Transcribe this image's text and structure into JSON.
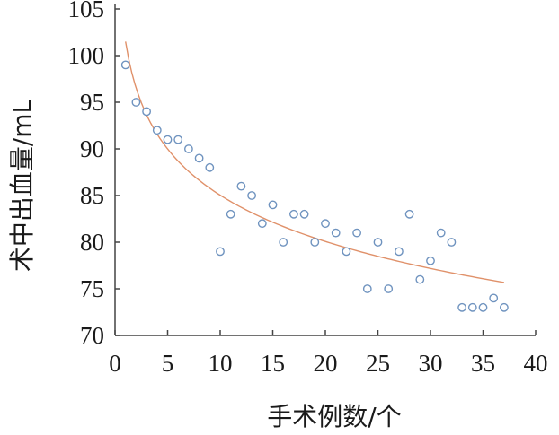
{
  "chart_data": {
    "type": "scatter",
    "xlabel": "手术例数/个",
    "ylabel": "术中出血量/mL",
    "xlim": [
      0,
      40
    ],
    "ylim": [
      70,
      105
    ],
    "xticks": [
      0,
      5,
      10,
      15,
      20,
      25,
      30,
      35,
      40
    ],
    "yticks": [
      70,
      75,
      80,
      85,
      90,
      95,
      100,
      105
    ],
    "grid": false,
    "legend": "none",
    "series": [
      {
        "kind": "scatter",
        "color": "#6f93bf",
        "points": [
          {
            "x": 1,
            "y": 99
          },
          {
            "x": 2,
            "y": 95
          },
          {
            "x": 3,
            "y": 94
          },
          {
            "x": 4,
            "y": 92
          },
          {
            "x": 5,
            "y": 91
          },
          {
            "x": 6,
            "y": 91
          },
          {
            "x": 7,
            "y": 90
          },
          {
            "x": 8,
            "y": 89
          },
          {
            "x": 9,
            "y": 88
          },
          {
            "x": 10,
            "y": 79
          },
          {
            "x": 11,
            "y": 83
          },
          {
            "x": 12,
            "y": 86
          },
          {
            "x": 13,
            "y": 85
          },
          {
            "x": 14,
            "y": 82
          },
          {
            "x": 15,
            "y": 84
          },
          {
            "x": 16,
            "y": 80
          },
          {
            "x": 17,
            "y": 83
          },
          {
            "x": 18,
            "y": 83
          },
          {
            "x": 19,
            "y": 80
          },
          {
            "x": 20,
            "y": 82
          },
          {
            "x": 21,
            "y": 81
          },
          {
            "x": 22,
            "y": 79
          },
          {
            "x": 23,
            "y": 81
          },
          {
            "x": 24,
            "y": 75
          },
          {
            "x": 25,
            "y": 80
          },
          {
            "x": 26,
            "y": 75
          },
          {
            "x": 27,
            "y": 79
          },
          {
            "x": 28,
            "y": 83
          },
          {
            "x": 29,
            "y": 76
          },
          {
            "x": 30,
            "y": 78
          },
          {
            "x": 31,
            "y": 81
          },
          {
            "x": 32,
            "y": 80
          },
          {
            "x": 33,
            "y": 73
          },
          {
            "x": 34,
            "y": 73
          },
          {
            "x": 35,
            "y": 73
          },
          {
            "x": 36,
            "y": 74
          },
          {
            "x": 37,
            "y": 73
          }
        ]
      },
      {
        "kind": "trendline",
        "fit": "logarithmic",
        "color": "#e0916a",
        "x_range": [
          1,
          37
        ],
        "intercept": 101.5,
        "slope": -7.15
      }
    ]
  }
}
